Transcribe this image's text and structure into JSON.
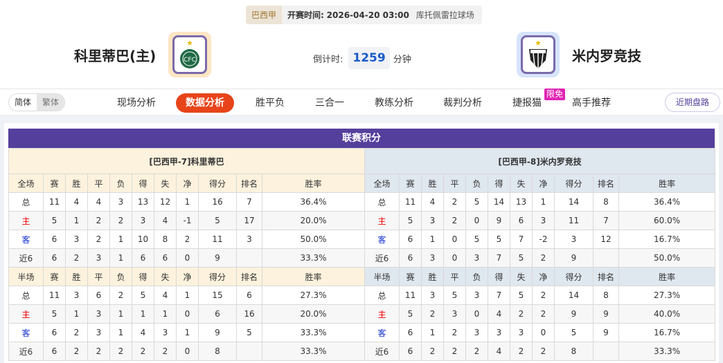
{
  "match": {
    "league": "巴西甲",
    "time_label": "开赛时间:",
    "time": "2026-04-20 03:00",
    "venue": "库托佩雷拉球场",
    "home": "科里蒂巴(主)",
    "away": "米内罗竞技",
    "countdown_label": "倒计时:",
    "countdown": "1259",
    "countdown_unit": "分钟"
  },
  "nav": {
    "lang": [
      "简体",
      "繁体"
    ],
    "items": [
      "现场分析",
      "数据分析",
      "胜平负",
      "三合一",
      "教练分析",
      "裁判分析",
      "捷报猫",
      "高手推荐"
    ],
    "active": "数据分析",
    "badge": "限免",
    "recent": "近期盘路"
  },
  "colors": {
    "accent": "#e8441a",
    "title_bg": "#553f9c",
    "home_text": "#e00000",
    "away_text": "#1530d0"
  },
  "standings": {
    "title": "联赛积分",
    "columns": [
      "赛",
      "胜",
      "平",
      "负",
      "得",
      "失",
      "净",
      "得分",
      "排名",
      "胜率"
    ],
    "home": {
      "team": "[巴西甲-7]科里蒂巴",
      "full": {
        "label": "全场",
        "rows": [
          [
            "总",
            "11",
            "4",
            "4",
            "3",
            "13",
            "12",
            "1",
            "16",
            "7",
            "36.4%"
          ],
          [
            "主",
            "5",
            "1",
            "2",
            "2",
            "3",
            "4",
            "-1",
            "5",
            "17",
            "20.0%"
          ],
          [
            "客",
            "6",
            "3",
            "2",
            "1",
            "10",
            "8",
            "2",
            "11",
            "3",
            "50.0%"
          ],
          [
            "近6",
            "6",
            "2",
            "3",
            "1",
            "6",
            "6",
            "0",
            "9",
            "",
            "33.3%"
          ]
        ]
      },
      "half": {
        "label": "半场",
        "rows": [
          [
            "总",
            "11",
            "3",
            "6",
            "2",
            "5",
            "4",
            "1",
            "15",
            "6",
            "27.3%"
          ],
          [
            "主",
            "5",
            "1",
            "3",
            "1",
            "1",
            "1",
            "0",
            "6",
            "16",
            "20.0%"
          ],
          [
            "客",
            "6",
            "2",
            "3",
            "1",
            "4",
            "3",
            "1",
            "9",
            "5",
            "33.3%"
          ],
          [
            "近6",
            "6",
            "2",
            "2",
            "2",
            "2",
            "2",
            "0",
            "8",
            "",
            "33.3%"
          ]
        ]
      }
    },
    "away": {
      "team": "[巴西甲-8]米内罗竞技",
      "full": {
        "label": "全场",
        "rows": [
          [
            "总",
            "11",
            "4",
            "2",
            "5",
            "14",
            "13",
            "1",
            "14",
            "8",
            "36.4%"
          ],
          [
            "主",
            "5",
            "3",
            "2",
            "0",
            "9",
            "6",
            "3",
            "11",
            "7",
            "60.0%"
          ],
          [
            "客",
            "6",
            "1",
            "0",
            "5",
            "5",
            "7",
            "-2",
            "3",
            "12",
            "16.7%"
          ],
          [
            "近6",
            "6",
            "3",
            "0",
            "3",
            "7",
            "5",
            "2",
            "9",
            "",
            "50.0%"
          ]
        ]
      },
      "half": {
        "label": "半场",
        "rows": [
          [
            "总",
            "11",
            "3",
            "5",
            "3",
            "7",
            "5",
            "2",
            "14",
            "8",
            "27.3%"
          ],
          [
            "主",
            "5",
            "2",
            "3",
            "0",
            "4",
            "2",
            "2",
            "9",
            "9",
            "40.0%"
          ],
          [
            "客",
            "6",
            "1",
            "2",
            "3",
            "3",
            "3",
            "0",
            "5",
            "9",
            "16.7%"
          ],
          [
            "近6",
            "6",
            "2",
            "2",
            "2",
            "4",
            "2",
            "2",
            "8",
            "",
            "33.3%"
          ]
        ]
      }
    }
  }
}
